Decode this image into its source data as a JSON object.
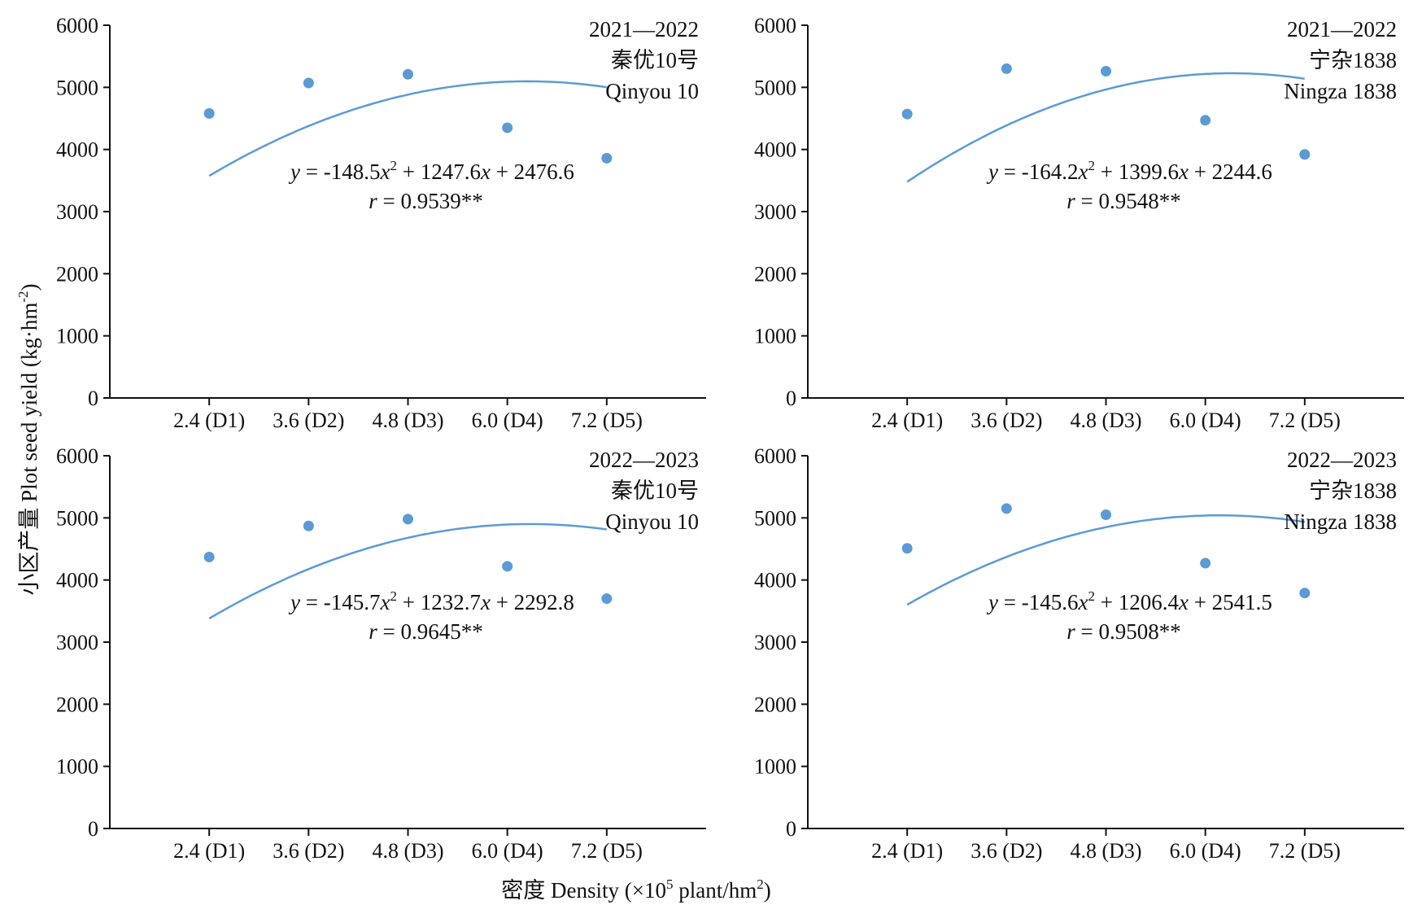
{
  "figure": {
    "y_axis_label": "小区产量 Plot seed yield (kg·hm",
    "y_axis_label_sup": "-2",
    "y_axis_label_end": ")",
    "x_axis_label": "密度 Density (×10",
    "x_axis_label_sup1": "5",
    "x_axis_label_mid": " plant/hm",
    "x_axis_label_sup2": "2",
    "x_axis_label_end": ")"
  },
  "style": {
    "series_color": "#5b9bd5",
    "axis_color": "#111111"
  },
  "chart_data": [
    {
      "type": "scatter",
      "annotation_lines": [
        "2021—2022",
        "秦优10号",
        "Qinyou 10"
      ],
      "categories": [
        "2.4 (D1)",
        "3.6 (D2)",
        "4.8 (D3)",
        "6.0 (D4)",
        "7.2 (D5)"
      ],
      "x": [
        1,
        2,
        3,
        4,
        5
      ],
      "values": [
        4580,
        5070,
        5210,
        4350,
        3860
      ],
      "fit": {
        "a": -148.5,
        "b": 1247.6,
        "c": 2476.6
      },
      "equation": {
        "y": "y",
        "eq": " = -148.5",
        "x1": "x",
        "sup": "2",
        "mid": " + 1247.6",
        "x2": "x",
        "end": " + 2476.6"
      },
      "r_label": {
        "r": "r",
        "text": " = 0.9539**"
      },
      "yticks": [
        0,
        1000,
        2000,
        3000,
        4000,
        5000,
        6000
      ],
      "ylim": [
        0,
        6000
      ],
      "xlim": [
        0,
        6
      ]
    },
    {
      "type": "scatter",
      "annotation_lines": [
        "2021—2022",
        "宁杂1838",
        "Ningza 1838"
      ],
      "categories": [
        "2.4 (D1)",
        "3.6 (D2)",
        "4.8 (D3)",
        "6.0 (D4)",
        "7.2 (D5)"
      ],
      "x": [
        1,
        2,
        3,
        4,
        5
      ],
      "values": [
        4570,
        5300,
        5260,
        4470,
        3920
      ],
      "fit": {
        "a": -164.2,
        "b": 1399.6,
        "c": 2244.6
      },
      "equation": {
        "y": "y",
        "eq": " = -164.2",
        "x1": "x",
        "sup": "2",
        "mid": " + 1399.6",
        "x2": "x",
        "end": " + 2244.6"
      },
      "r_label": {
        "r": "r",
        "text": " = 0.9548**"
      },
      "yticks": [
        0,
        1000,
        2000,
        3000,
        4000,
        5000,
        6000
      ],
      "ylim": [
        0,
        6000
      ],
      "xlim": [
        0,
        6
      ]
    },
    {
      "type": "scatter",
      "annotation_lines": [
        "2022—2023",
        "秦优10号",
        "Qinyou 10"
      ],
      "categories": [
        "2.4 (D1)",
        "3.6 (D2)",
        "4.8 (D3)",
        "6.0 (D4)",
        "7.2 (D5)"
      ],
      "x": [
        1,
        2,
        3,
        4,
        5
      ],
      "values": [
        4370,
        4870,
        4980,
        4220,
        3700
      ],
      "fit": {
        "a": -145.7,
        "b": 1232.7,
        "c": 2292.8
      },
      "equation": {
        "y": "y",
        "eq": " = -145.7",
        "x1": "x",
        "sup": "2",
        "mid": " + 1232.7",
        "x2": "x",
        "end": " + 2292.8"
      },
      "r_label": {
        "r": "r",
        "text": " = 0.9645**"
      },
      "yticks": [
        0,
        1000,
        2000,
        3000,
        4000,
        5000,
        6000
      ],
      "ylim": [
        0,
        6000
      ],
      "xlim": [
        0,
        6
      ]
    },
    {
      "type": "scatter",
      "annotation_lines": [
        "2022—2023",
        "宁杂1838",
        "Ningza 1838"
      ],
      "categories": [
        "2.4 (D1)",
        "3.6 (D2)",
        "4.8 (D3)",
        "6.0 (D4)",
        "7.2 (D5)"
      ],
      "x": [
        1,
        2,
        3,
        4,
        5
      ],
      "values": [
        4510,
        5150,
        5050,
        4270,
        3790
      ],
      "fit": {
        "a": -145.6,
        "b": 1206.4,
        "c": 2541.5
      },
      "equation": {
        "y": "y",
        "eq": " = -145.6",
        "x1": "x",
        "sup": "2",
        "mid": " + 1206.4",
        "x2": "x",
        "end": " + 2541.5"
      },
      "r_label": {
        "r": "r",
        "text": " = 0.9508**"
      },
      "yticks": [
        0,
        1000,
        2000,
        3000,
        4000,
        5000,
        6000
      ],
      "ylim": [
        0,
        6000
      ],
      "xlim": [
        0,
        6
      ]
    }
  ]
}
